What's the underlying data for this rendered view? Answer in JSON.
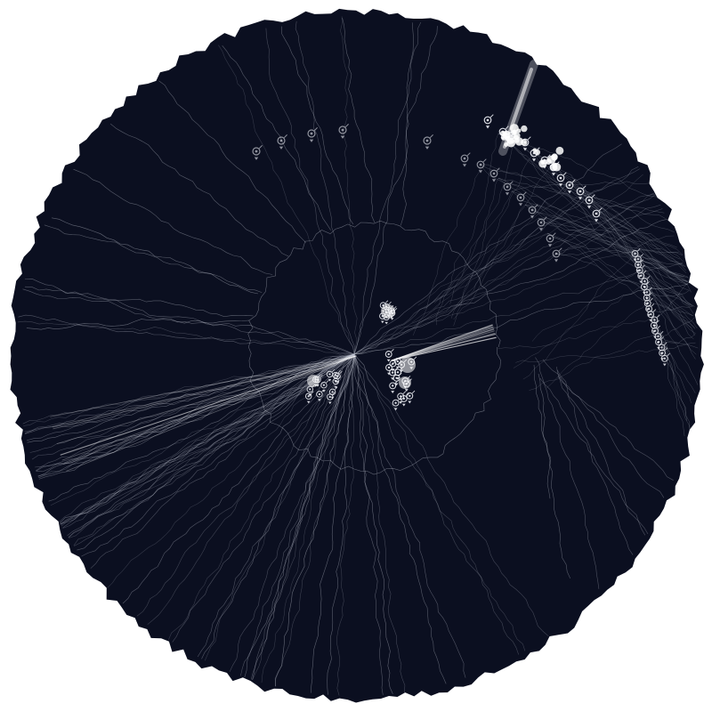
{
  "colors": {
    "page_background": "#ffffff",
    "disc_fill": "#0b0f20",
    "line_stroke": "#c8ccd8",
    "marker_stroke": "#e8eaf0",
    "highlight": "#ffffff"
  },
  "icons": {
    "node_marker": "target-ring-icon",
    "node_arrow": "triangle-down-icon"
  }
}
